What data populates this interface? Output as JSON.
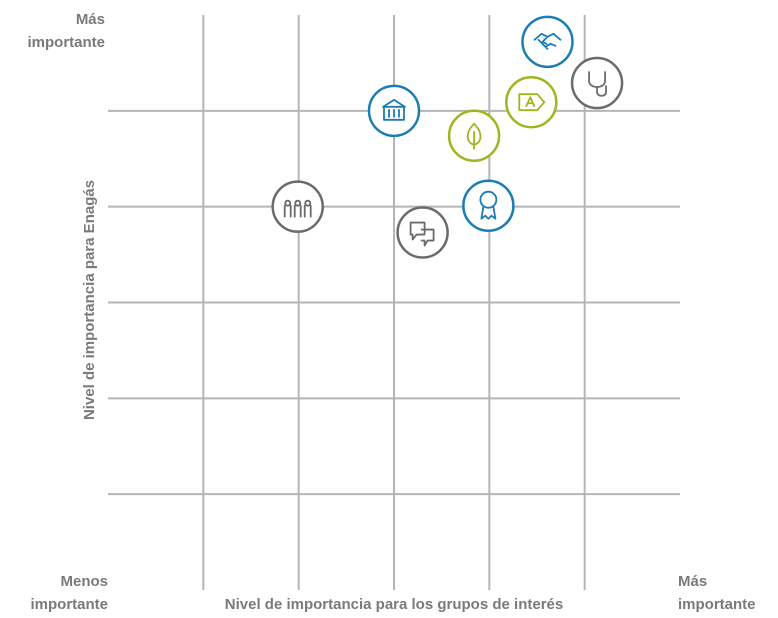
{
  "chart_data": {
    "type": "scatter",
    "x_axis_label": "Nivel de importancia para los grupos de interés",
    "y_axis_label": "Nivel de importancia para Enagás",
    "y_axis_top_label": [
      "Más",
      "importante"
    ],
    "x_axis_start_label": [
      "Menos",
      "importante"
    ],
    "x_axis_end_label": [
      "Más",
      "importante"
    ],
    "xlim": [
      0,
      6
    ],
    "ylim": [
      0,
      6
    ],
    "xticks": [
      1,
      2,
      3,
      4,
      5
    ],
    "yticks": [
      1,
      2,
      3,
      4,
      5
    ],
    "grid": true,
    "series": [
      {
        "color": "#1a7db3",
        "x": [
          4.61,
          3.0,
          3.99
        ],
        "values": [
          5.72,
          5.0,
          4.01
        ]
      },
      {
        "color": "#9ab81e",
        "x": [
          4.44,
          3.84
        ],
        "values": [
          5.09,
          4.74
        ]
      },
      {
        "color": "#6b6b6b",
        "x": [
          5.13,
          1.99,
          3.3
        ],
        "values": [
          5.29,
          4.0,
          3.73
        ]
      }
    ]
  }
}
